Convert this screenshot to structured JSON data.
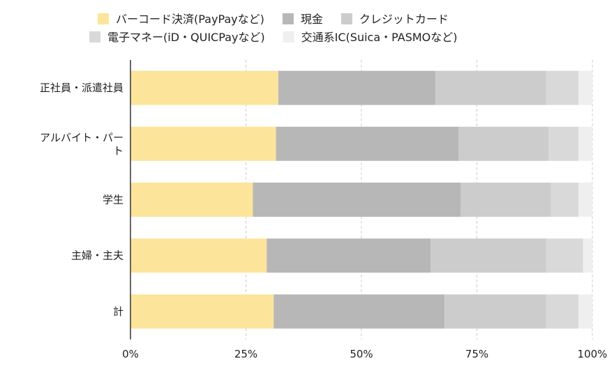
{
  "chart_data": {
    "type": "bar",
    "orientation": "horizontal",
    "stacked": "percent",
    "title": "",
    "xlabel": "",
    "ylabel": "",
    "xlim": [
      0,
      100
    ],
    "x_ticks": [
      0,
      25,
      50,
      75,
      100
    ],
    "x_tick_labels": [
      "0%",
      "25%",
      "50%",
      "75%",
      "100%"
    ],
    "grid": true,
    "legend_position": "top",
    "categories": [
      "正社員・派遣社員",
      "アルバイト・パート",
      "学生",
      "主婦・主夫",
      "計"
    ],
    "series": [
      {
        "name": "バーコード決済(PayPayなど)",
        "color": "#fce59a",
        "values": [
          32.0,
          31.5,
          26.5,
          29.5,
          31.0
        ]
      },
      {
        "name": "現金",
        "color": "#b7b7b7",
        "values": [
          34.0,
          39.5,
          45.0,
          35.5,
          37.0
        ]
      },
      {
        "name": "クレジットカード",
        "color": "#cccccc",
        "values": [
          24.0,
          19.5,
          19.5,
          25.0,
          22.0
        ]
      },
      {
        "name": "電子マネー(iD・QUICPayなど)",
        "color": "#d9d9d9",
        "values": [
          7.0,
          6.5,
          6.0,
          8.0,
          7.0
        ]
      },
      {
        "name": "交通系IC(Suica・PASMOなど)",
        "color": "#efefef",
        "values": [
          3.0,
          3.0,
          3.0,
          2.0,
          3.0
        ]
      }
    ]
  }
}
